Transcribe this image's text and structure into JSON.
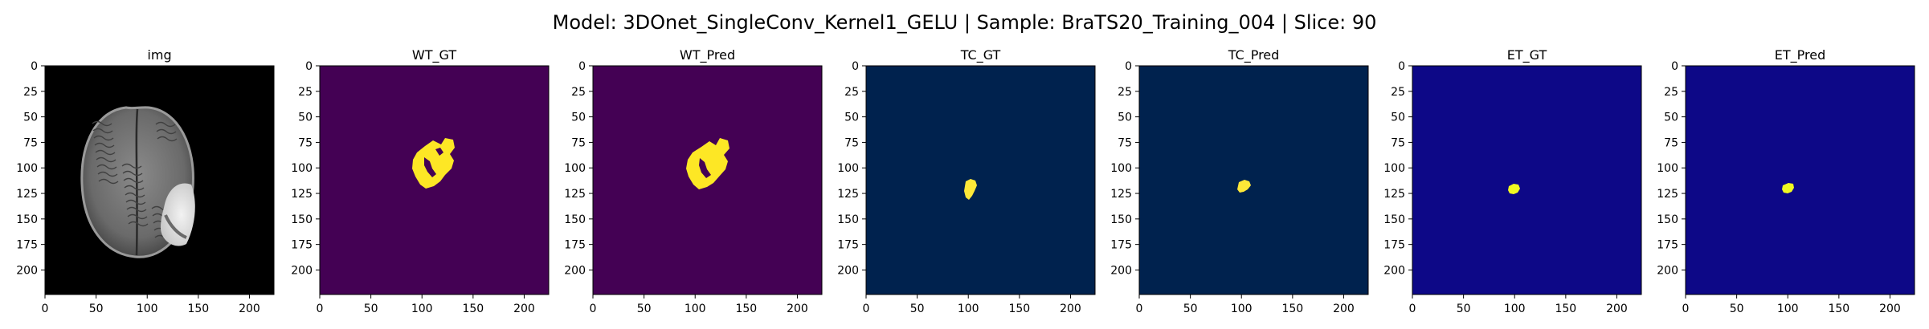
{
  "figure": {
    "title": "Model: 3DOnet_SingleConv_Kernel1_GELU | Sample: BraTS20_Training_004 | Slice: 90"
  },
  "axes": {
    "xticks": [
      "0",
      "50",
      "100",
      "150",
      "200"
    ],
    "yticks": [
      "0",
      "25",
      "50",
      "75",
      "100",
      "125",
      "150",
      "175",
      "200"
    ],
    "extent": [
      0,
      224
    ]
  },
  "panels": [
    {
      "title": "img",
      "kind": "image",
      "background": "#000000"
    },
    {
      "title": "WT_GT",
      "kind": "mask",
      "background": "#440154",
      "foreground": "#fde725",
      "region": "wt-gt"
    },
    {
      "title": "WT_Pred",
      "kind": "mask",
      "background": "#440154",
      "foreground": "#fde725",
      "region": "wt-pred"
    },
    {
      "title": "TC_GT",
      "kind": "mask",
      "background": "#00224e",
      "foreground": "#fee838",
      "region": "tc-gt"
    },
    {
      "title": "TC_Pred",
      "kind": "mask",
      "background": "#00224e",
      "foreground": "#fee838",
      "region": "tc-pred"
    },
    {
      "title": "ET_GT",
      "kind": "mask",
      "background": "#0d0887",
      "foreground": "#f0f921",
      "region": "et-gt"
    },
    {
      "title": "ET_Pred",
      "kind": "mask",
      "background": "#0d0887",
      "foreground": "#f0f921",
      "region": "et-pred"
    }
  ]
}
